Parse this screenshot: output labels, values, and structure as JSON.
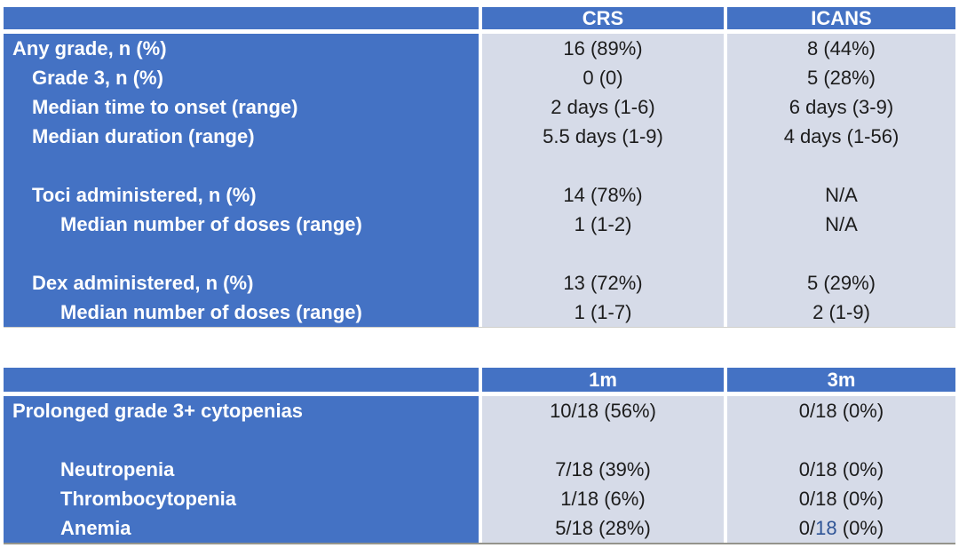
{
  "colors": {
    "header_blue": "#4472C4",
    "cell_light": "#D6DBE8",
    "highlight_blue": "#2E5496",
    "label_text": "#FFFFFF",
    "data_text": "#1C1C1C"
  },
  "table1": {
    "headers": {
      "col2": "CRS",
      "col3": "ICANS"
    },
    "rows": [
      {
        "label": "Any grade, n (%)",
        "crs": "16 (89%)",
        "icans": "8 (44%)"
      },
      {
        "label": "Grade 3, n (%)",
        "crs": "0 (0)",
        "icans": "5 (28%)"
      },
      {
        "label": "Median time to onset (range)",
        "crs": "2 days (1-6)",
        "icans": "6 days (3-9)"
      },
      {
        "label": "Median duration (range)",
        "crs": "5.5 days (1-9)",
        "icans": "4 days (1-56)"
      },
      {
        "label": "",
        "crs": "",
        "icans": ""
      },
      {
        "label": "Toci administered, n (%)",
        "crs": "14 (78%)",
        "icans": "N/A"
      },
      {
        "label": "Median number of doses (range)",
        "crs": "1 (1-2)",
        "icans": "N/A"
      },
      {
        "label": "",
        "crs": "",
        "icans": ""
      },
      {
        "label": "Dex administered, n (%)",
        "crs": "13 (72%)",
        "icans": "5 (29%)"
      },
      {
        "label": "Median number of doses (range)",
        "crs": "1 (1-7)",
        "icans": "2 (1-9)"
      }
    ]
  },
  "table2": {
    "headers": {
      "col2": "1m",
      "col3": "3m"
    },
    "rows": [
      {
        "label": "Prolonged grade 3+ cytopenias",
        "m1": "10/18 (56%)",
        "m3": "0/18 (0%)"
      },
      {
        "label": "",
        "m1": "",
        "m3": ""
      },
      {
        "label": "Neutropenia",
        "m1": "7/18 (39%)",
        "m3": "0/18 (0%)"
      },
      {
        "label": "Thrombocytopenia",
        "m1": "1/18 (6%)",
        "m3": "0/18 (0%)"
      },
      {
        "label": "Anemia",
        "m1": "5/18 (28%)",
        "m3_prefix": "0/",
        "m3_highlight": "18",
        "m3_suffix": " (0%)"
      }
    ]
  }
}
